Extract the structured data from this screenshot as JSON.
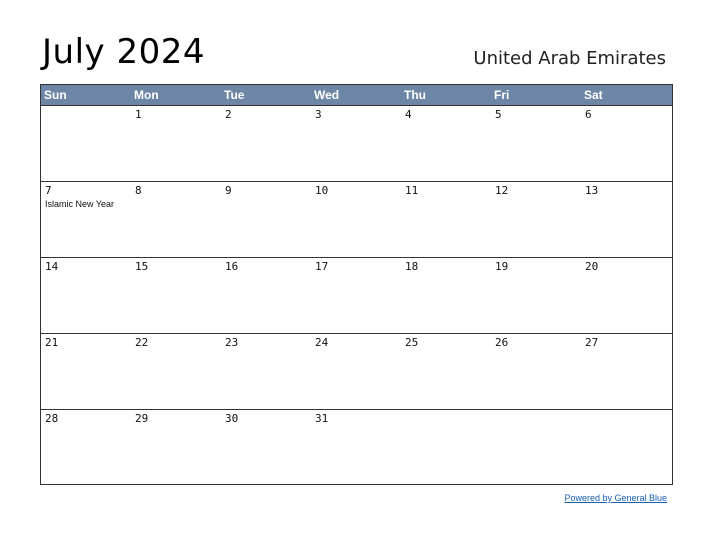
{
  "title": "July 2024",
  "country": "United Arab Emirates",
  "days_of_week": [
    "Sun",
    "Mon",
    "Tue",
    "Wed",
    "Thu",
    "Fri",
    "Sat"
  ],
  "weeks": [
    [
      {
        "day": ""
      },
      {
        "day": "1"
      },
      {
        "day": "2"
      },
      {
        "day": "3"
      },
      {
        "day": "4"
      },
      {
        "day": "5"
      },
      {
        "day": "6"
      }
    ],
    [
      {
        "day": "7",
        "holiday": "Islamic New Year"
      },
      {
        "day": "8"
      },
      {
        "day": "9"
      },
      {
        "day": "10"
      },
      {
        "day": "11"
      },
      {
        "day": "12"
      },
      {
        "day": "13"
      }
    ],
    [
      {
        "day": "14"
      },
      {
        "day": "15"
      },
      {
        "day": "16"
      },
      {
        "day": "17"
      },
      {
        "day": "18"
      },
      {
        "day": "19"
      },
      {
        "day": "20"
      }
    ],
    [
      {
        "day": "21"
      },
      {
        "day": "22"
      },
      {
        "day": "23"
      },
      {
        "day": "24"
      },
      {
        "day": "25"
      },
      {
        "day": "26"
      },
      {
        "day": "27"
      }
    ],
    [
      {
        "day": "28"
      },
      {
        "day": "29"
      },
      {
        "day": "30"
      },
      {
        "day": "31"
      },
      {
        "day": ""
      },
      {
        "day": ""
      },
      {
        "day": ""
      }
    ]
  ],
  "footer": "Powered by General Blue",
  "colors": {
    "header_bg": "#6d86a5",
    "link": "#1a5fb4"
  }
}
